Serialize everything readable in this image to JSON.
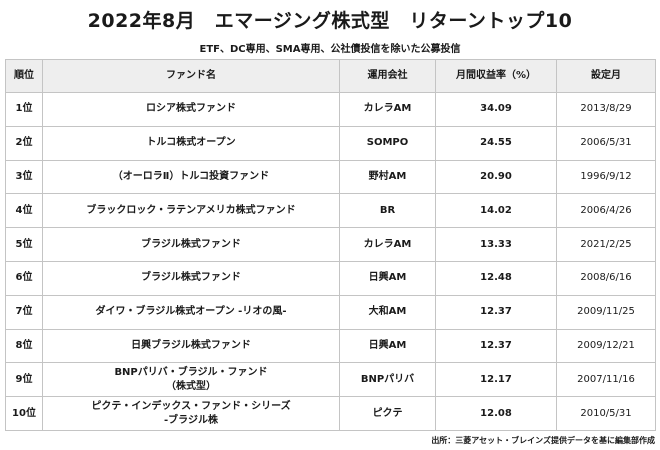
{
  "title": "2022年8月　エマージング株式型　リターントップ10",
  "subtitle": "ETF、DC専用、SMA専用、公社債投信を除いた公募投信",
  "table": {
    "headers": [
      "順位",
      "ファンド名",
      "運用会社",
      "月間収益率（%）",
      "設定月"
    ],
    "rows": [
      {
        "rank": "1位",
        "fund": "ロシア株式ファンド",
        "company": "カレラAM",
        "return": "34.09",
        "date": "2013/8/29"
      },
      {
        "rank": "2位",
        "fund": "トルコ株式オープン",
        "company": "SOMPO",
        "return": "24.55",
        "date": "2006/5/31"
      },
      {
        "rank": "3位",
        "fund": "（オーロラⅡ）トルコ投資ファンド",
        "company": "野村AM",
        "return": "20.90",
        "date": "1996/9/12"
      },
      {
        "rank": "4位",
        "fund": "ブラックロック・ラテンアメリカ株式ファンド",
        "company": "BR",
        "return": "14.02",
        "date": "2006/4/26"
      },
      {
        "rank": "5位",
        "fund": "ブラジル株式ファンド",
        "company": "カレラAM",
        "return": "13.33",
        "date": "2021/2/25"
      },
      {
        "rank": "6位",
        "fund": "ブラジル株式ファンド",
        "company": "日興AM",
        "return": "12.48",
        "date": "2008/6/16"
      },
      {
        "rank": "7位",
        "fund": "ダイワ・ブラジル株式オープン -リオの風-",
        "company": "大和AM",
        "return": "12.37",
        "date": "2009/11/25"
      },
      {
        "rank": "8位",
        "fund": "日興ブラジル株式ファンド",
        "company": "日興AM",
        "return": "12.37",
        "date": "2009/12/21"
      },
      {
        "rank": "9位",
        "fund_line1": "BNPパリバ・ブラジル・ファンド",
        "fund_line2": "（株式型）",
        "company": "BNPパリバ",
        "return": "12.17",
        "date": "2007/11/16"
      },
      {
        "rank": "10位",
        "fund_line1": "ピクテ・インデックス・ファンド・シリーズ",
        "fund_line2": "-ブラジル株",
        "company": "ピクテ",
        "return": "12.08",
        "date": "2010/5/31"
      }
    ]
  },
  "source": "出所：三菱アセット・ブレインズ提供データを基に編集部作成"
}
